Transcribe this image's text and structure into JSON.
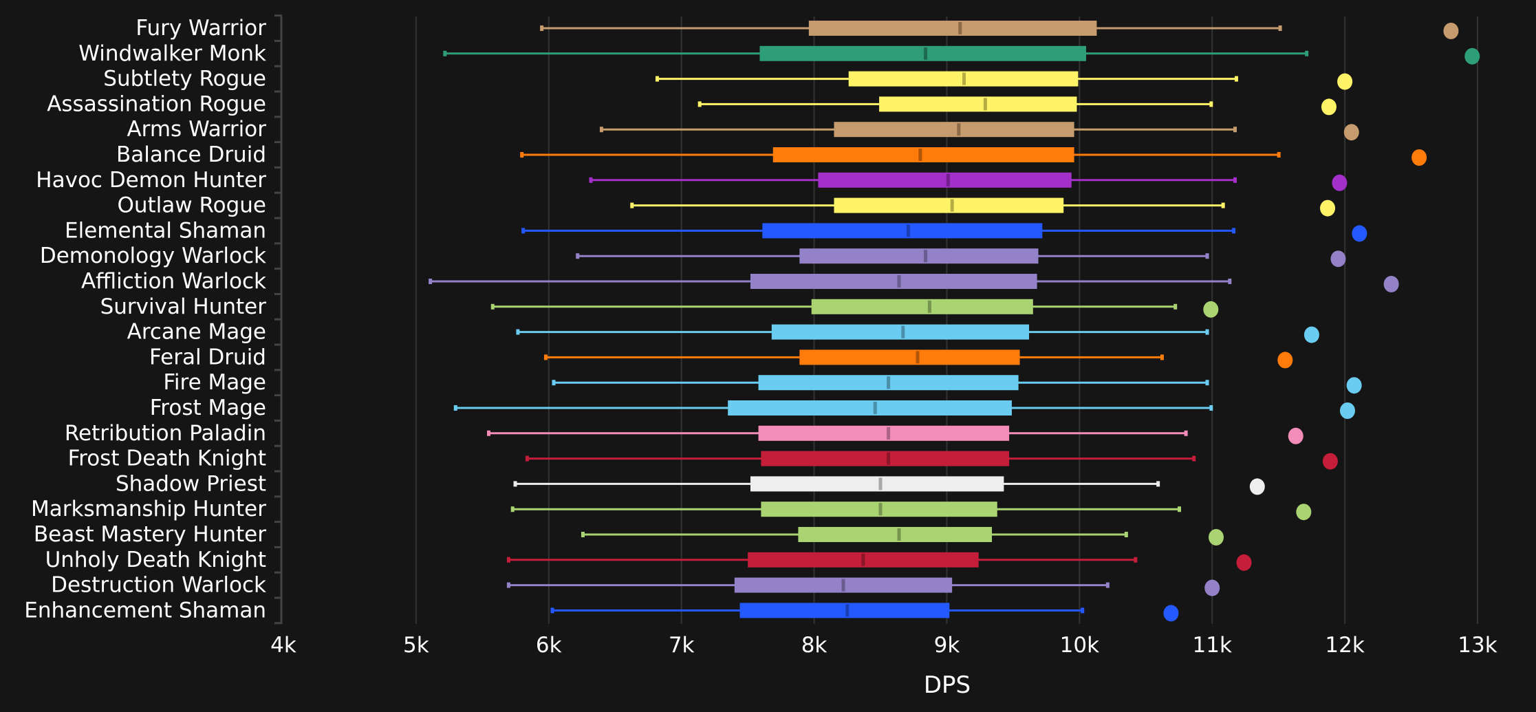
{
  "chart_data": {
    "type": "box",
    "title": "",
    "xlabel": "DPS",
    "ylabel": "",
    "xlim": [
      4000,
      13000
    ],
    "x_ticks": [
      4000,
      5000,
      6000,
      7000,
      8000,
      9000,
      10000,
      11000,
      12000,
      13000
    ],
    "x_tick_labels": [
      "4k",
      "5k",
      "6k",
      "7k",
      "8k",
      "9k",
      "10k",
      "11k",
      "12k",
      "13k"
    ],
    "grid": "vertical",
    "legend": "none",
    "series": [
      {
        "name": "Fury Warrior",
        "color": "#C69B6D",
        "median_color": "#8E6B47",
        "min": 5950,
        "q1": 7960,
        "median": 9100,
        "q3": 10130,
        "max": 11510,
        "top": 12800
      },
      {
        "name": "Windwalker Monk",
        "color": "#2E9E78",
        "median_color": "#1D6A50",
        "min": 5220,
        "q1": 7590,
        "median": 8840,
        "q3": 10050,
        "max": 11710,
        "top": 12960
      },
      {
        "name": "Subtlety Rogue",
        "color": "#FFF468",
        "median_color": "#B5AD44",
        "min": 6820,
        "q1": 8260,
        "median": 9130,
        "q3": 9990,
        "max": 11180,
        "top": 12000
      },
      {
        "name": "Assassination Rogue",
        "color": "#FFF468",
        "median_color": "#B5AD44",
        "min": 7140,
        "q1": 8490,
        "median": 9290,
        "q3": 9980,
        "max": 10990,
        "top": 11880
      },
      {
        "name": "Arms Warrior",
        "color": "#C69B6D",
        "median_color": "#8E6B47",
        "min": 6400,
        "q1": 8150,
        "median": 9090,
        "q3": 9960,
        "max": 11170,
        "top": 12050
      },
      {
        "name": "Balance Druid",
        "color": "#FF7C0A",
        "median_color": "#B35506",
        "min": 5800,
        "q1": 7690,
        "median": 8800,
        "q3": 9960,
        "max": 11500,
        "top": 12560
      },
      {
        "name": "Havoc Demon Hunter",
        "color": "#A330C9",
        "median_color": "#73208E",
        "min": 6320,
        "q1": 8030,
        "median": 9010,
        "q3": 9940,
        "max": 11170,
        "top": 11960
      },
      {
        "name": "Outlaw Rogue",
        "color": "#FFF468",
        "median_color": "#B5AD44",
        "min": 6630,
        "q1": 8150,
        "median": 9040,
        "q3": 9880,
        "max": 11080,
        "top": 11870
      },
      {
        "name": "Elemental Shaman",
        "color": "#2459FF",
        "median_color": "#1A3FB5",
        "min": 5810,
        "q1": 7610,
        "median": 8710,
        "q3": 9720,
        "max": 11160,
        "top": 12110
      },
      {
        "name": "Demonology Warlock",
        "color": "#9482C9",
        "median_color": "#695C8F",
        "min": 6220,
        "q1": 7890,
        "median": 8840,
        "q3": 9690,
        "max": 10960,
        "top": 11950
      },
      {
        "name": "Affliction Warlock",
        "color": "#9482C9",
        "median_color": "#695C8F",
        "min": 5110,
        "q1": 7520,
        "median": 8640,
        "q3": 9680,
        "max": 11130,
        "top": 12350
      },
      {
        "name": "Survival Hunter",
        "color": "#AAD372",
        "median_color": "#789550",
        "min": 5580,
        "q1": 7980,
        "median": 8870,
        "q3": 9650,
        "max": 10720,
        "top": 10990
      },
      {
        "name": "Arcane Mage",
        "color": "#69CCF0",
        "median_color": "#4A90AA",
        "min": 5770,
        "q1": 7680,
        "median": 8670,
        "q3": 9620,
        "max": 10960,
        "top": 11750
      },
      {
        "name": "Feral Druid",
        "color": "#FF7C0A",
        "median_color": "#B35506",
        "min": 5980,
        "q1": 7890,
        "median": 8780,
        "q3": 9550,
        "max": 10620,
        "top": 11550
      },
      {
        "name": "Fire Mage",
        "color": "#69CCF0",
        "median_color": "#4A90AA",
        "min": 6040,
        "q1": 7580,
        "median": 8560,
        "q3": 9540,
        "max": 10960,
        "top": 12070
      },
      {
        "name": "Frost Mage",
        "color": "#69CCF0",
        "median_color": "#4A90AA",
        "min": 5300,
        "q1": 7350,
        "median": 8460,
        "q3": 9490,
        "max": 10990,
        "top": 12020
      },
      {
        "name": "Retribution Paladin",
        "color": "#F48CBA",
        "median_color": "#AD6384",
        "min": 5550,
        "q1": 7580,
        "median": 8560,
        "q3": 9470,
        "max": 10800,
        "top": 11630
      },
      {
        "name": "Frost Death Knight",
        "color": "#C41E3A",
        "median_color": "#8B1529",
        "min": 5840,
        "q1": 7600,
        "median": 8560,
        "q3": 9470,
        "max": 10860,
        "top": 11890
      },
      {
        "name": "Shadow Priest",
        "color": "#EEEEEE",
        "median_color": "#A8A8A8",
        "min": 5750,
        "q1": 7520,
        "median": 8500,
        "q3": 9430,
        "max": 10590,
        "top": 11340
      },
      {
        "name": "Marksmanship Hunter",
        "color": "#AAD372",
        "median_color": "#789550",
        "min": 5730,
        "q1": 7600,
        "median": 8500,
        "q3": 9380,
        "max": 10750,
        "top": 11690
      },
      {
        "name": "Beast Mastery Hunter",
        "color": "#AAD372",
        "median_color": "#789550",
        "min": 6260,
        "q1": 7880,
        "median": 8640,
        "q3": 9340,
        "max": 10350,
        "top": 11030
      },
      {
        "name": "Unholy Death Knight",
        "color": "#C41E3A",
        "median_color": "#8B1529",
        "min": 5700,
        "q1": 7500,
        "median": 8370,
        "q3": 9240,
        "max": 10420,
        "top": 11240
      },
      {
        "name": "Destruction Warlock",
        "color": "#9482C9",
        "median_color": "#695C8F",
        "min": 5700,
        "q1": 7400,
        "median": 8220,
        "q3": 9040,
        "max": 10210,
        "top": 11000
      },
      {
        "name": "Enhancement Shaman",
        "color": "#2459FF",
        "median_color": "#1A3FB5",
        "min": 6030,
        "q1": 7440,
        "median": 8250,
        "q3": 9020,
        "max": 10020,
        "top": 10690
      }
    ]
  },
  "colors": {
    "background": "#151515",
    "grid": "#333333",
    "axis": "#444444",
    "text": "#FFFFFF"
  }
}
